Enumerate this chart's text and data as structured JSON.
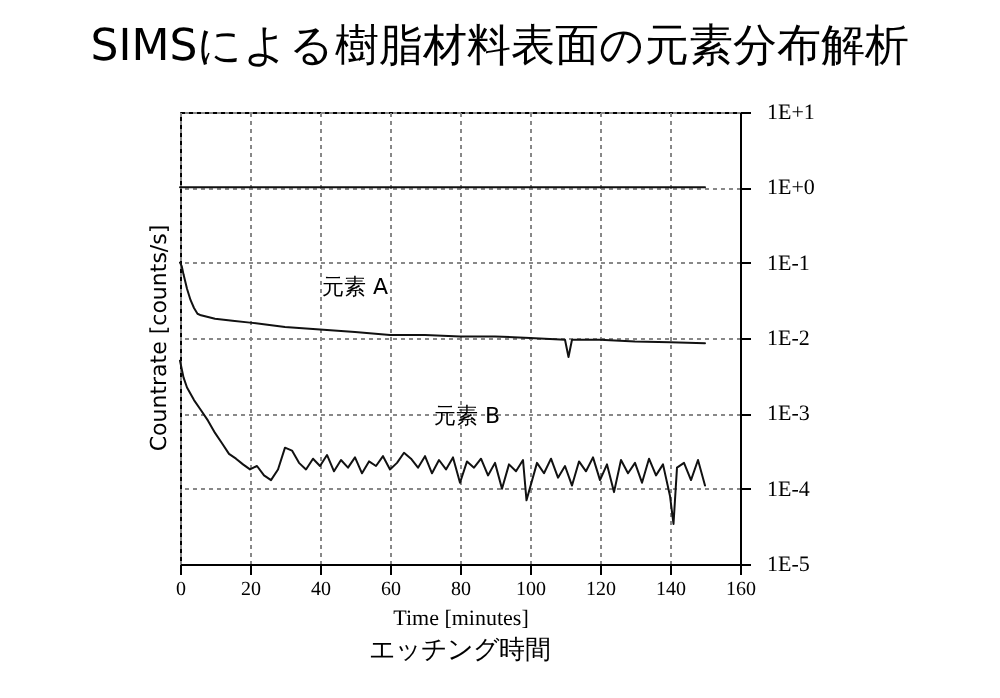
{
  "chart_data": {
    "type": "line",
    "title": "SIMSによる樹脂材料表面の元素分布解析",
    "xlabel": "Time [minutes]",
    "ylabel": "Countrate [counts/s]",
    "annotations": [
      "エッチング時間"
    ],
    "log": true,
    "grid": true,
    "xlim": [
      0,
      160
    ],
    "xticks": [
      0,
      20,
      40,
      60,
      80,
      100,
      120,
      140,
      160
    ],
    "ylim": [
      1e-05,
      10
    ],
    "yticks": [
      {
        "value": 10,
        "label": "1E+1"
      },
      {
        "value": 1,
        "label": "1E+0"
      },
      {
        "value": 0.1,
        "label": "1E-1"
      },
      {
        "value": 0.01,
        "label": "1E-2"
      },
      {
        "value": 0.001,
        "label": "1E-3"
      },
      {
        "value": 0.0001,
        "label": "1E-4"
      },
      {
        "value": 1e-05,
        "label": "1E-5"
      }
    ],
    "series": [
      {
        "color": "#111111",
        "x": [
          0,
          150
        ],
        "values": [
          1,
          1
        ]
      },
      {
        "name": "元素 A",
        "color": "#111111",
        "x": [
          0,
          0.5,
          1,
          2,
          3,
          4,
          5,
          6,
          8,
          10,
          15,
          20,
          25,
          30,
          40,
          50,
          60,
          70,
          80,
          90,
          100,
          110,
          111,
          112,
          120,
          130,
          140,
          150
        ],
        "values": [
          0.1,
          0.09,
          0.07,
          0.045,
          0.032,
          0.025,
          0.021,
          0.02,
          0.019,
          0.018,
          0.017,
          0.016,
          0.015,
          0.014,
          0.013,
          0.012,
          0.011,
          0.011,
          0.0105,
          0.0105,
          0.01,
          0.0095,
          0.0056,
          0.0095,
          0.0095,
          0.009,
          0.0088,
          0.0085
        ]
      },
      {
        "name": "元素 B",
        "color": "#111111",
        "x": [
          0,
          1,
          2,
          4,
          6,
          8,
          10,
          12,
          14,
          16,
          18,
          20,
          22,
          24,
          26,
          28,
          30,
          32,
          34,
          36,
          38,
          40,
          42,
          44,
          46,
          48,
          50,
          52,
          54,
          56,
          58,
          60,
          62,
          64,
          66,
          68,
          70,
          72,
          74,
          76,
          78,
          80,
          82,
          84,
          86,
          88,
          90,
          92,
          94,
          96,
          98,
          99,
          102,
          104,
          106,
          108,
          110,
          112,
          114,
          116,
          118,
          120,
          122,
          124,
          126,
          128,
          130,
          132,
          134,
          136,
          138,
          140,
          141,
          142,
          144,
          146,
          148,
          150
        ],
        "values": [
          0.005,
          0.003,
          0.0022,
          0.0015,
          0.0011,
          0.0008,
          0.00055,
          0.0004,
          0.00029,
          0.00025,
          0.00021,
          0.00018,
          0.0002,
          0.00015,
          0.00013,
          0.00018,
          0.00035,
          0.00032,
          0.00022,
          0.00018,
          0.00025,
          0.0002,
          0.00028,
          0.00017,
          0.00024,
          0.00019,
          0.00026,
          0.00016,
          0.00023,
          0.0002,
          0.00027,
          0.00018,
          0.00022,
          0.0003,
          0.00025,
          0.00019,
          0.00027,
          0.00016,
          0.00024,
          0.00018,
          0.00026,
          0.00012,
          0.00023,
          0.00019,
          0.00025,
          0.00015,
          0.00022,
          0.0001,
          0.00021,
          0.00017,
          0.00024,
          7e-05,
          0.00022,
          0.00016,
          0.00025,
          0.00014,
          0.0002,
          0.00011,
          0.00023,
          0.00017,
          0.00026,
          0.00013,
          0.00021,
          9e-05,
          0.00024,
          0.00016,
          0.00022,
          0.00012,
          0.00025,
          0.00015,
          0.00021,
          8e-05,
          3.4e-05,
          0.00019,
          0.00022,
          0.00013,
          0.00024,
          0.00011
        ]
      }
    ]
  }
}
